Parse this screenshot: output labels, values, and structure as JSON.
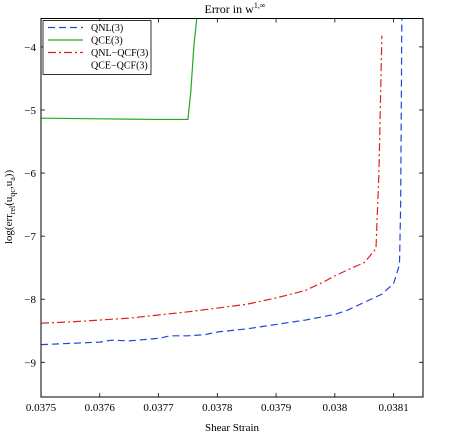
{
  "chart_data": {
    "type": "line",
    "title_base": "Error in w",
    "title_sup": "1,∞",
    "xlabel": "Shear Strain",
    "ylabel_parts": {
      "main": "log(err",
      "sub1": "rel",
      "mid": "(u",
      "sub2": "qc",
      "mid2": ",u",
      "sub3": "a",
      "end": "))"
    },
    "xlim": [
      0.0375,
      0.03815
    ],
    "ylim": [
      -9.55,
      -3.55
    ],
    "xticks": [
      0.0375,
      0.0376,
      0.0377,
      0.0378,
      0.0379,
      0.038,
      0.0381
    ],
    "xtick_labels": [
      "0.0375",
      "0.0376",
      "0.0377",
      "0.0378",
      "0.0379",
      "0.038",
      "0.0381"
    ],
    "yticks": [
      -9,
      -8,
      -7,
      -6,
      -5,
      -4
    ],
    "ytick_labels": [
      "−9",
      "−8",
      "−7",
      "−6",
      "−5",
      "−4"
    ],
    "grid": false,
    "legend_position": "top-left",
    "series": [
      {
        "name": "QNL(3)",
        "color": "#2244dd",
        "dash": "7,4",
        "points": [
          [
            0.0375,
            -8.72
          ],
          [
            0.03755,
            -8.7
          ],
          [
            0.0376,
            -8.68
          ],
          [
            0.03762,
            -8.65
          ],
          [
            0.03765,
            -8.66
          ],
          [
            0.0377,
            -8.62
          ],
          [
            0.03772,
            -8.58
          ],
          [
            0.03775,
            -8.58
          ],
          [
            0.03778,
            -8.56
          ],
          [
            0.0378,
            -8.52
          ],
          [
            0.03785,
            -8.47
          ],
          [
            0.0379,
            -8.4
          ],
          [
            0.03795,
            -8.33
          ],
          [
            0.038,
            -8.24
          ],
          [
            0.03802,
            -8.18
          ],
          [
            0.03805,
            -8.05
          ],
          [
            0.03808,
            -7.92
          ],
          [
            0.0381,
            -7.75
          ],
          [
            0.03811,
            -7.45
          ],
          [
            0.038112,
            -6.5
          ],
          [
            0.038113,
            -5.0
          ],
          [
            0.038114,
            -3.55
          ]
        ]
      },
      {
        "name": "QCE(3)",
        "color": "#22aa22",
        "dash": "",
        "points": [
          [
            0.0375,
            -5.13
          ],
          [
            0.0376,
            -5.14
          ],
          [
            0.0377,
            -5.15
          ],
          [
            0.03775,
            -5.15
          ],
          [
            0.037755,
            -4.7
          ],
          [
            0.03776,
            -4.0
          ],
          [
            0.037765,
            -3.55
          ]
        ]
      },
      {
        "name": "QNL−QCF(3)",
        "color": "#dd2222",
        "dash": "8,3,2,3",
        "points": [
          [
            0.0375,
            -8.38
          ],
          [
            0.03755,
            -8.36
          ],
          [
            0.0376,
            -8.33
          ],
          [
            0.03765,
            -8.3
          ],
          [
            0.0377,
            -8.25
          ],
          [
            0.03775,
            -8.2
          ],
          [
            0.0378,
            -8.14
          ],
          [
            0.03785,
            -8.08
          ],
          [
            0.0379,
            -7.98
          ],
          [
            0.03795,
            -7.86
          ],
          [
            0.03798,
            -7.73
          ],
          [
            0.038,
            -7.63
          ],
          [
            0.03803,
            -7.5
          ],
          [
            0.03805,
            -7.42
          ],
          [
            0.03807,
            -7.2
          ],
          [
            0.038075,
            -6.0
          ],
          [
            0.03808,
            -3.82
          ]
        ]
      },
      {
        "name": "QCE−QCF(3)",
        "color": "#000000",
        "dash": "",
        "points": []
      }
    ]
  }
}
